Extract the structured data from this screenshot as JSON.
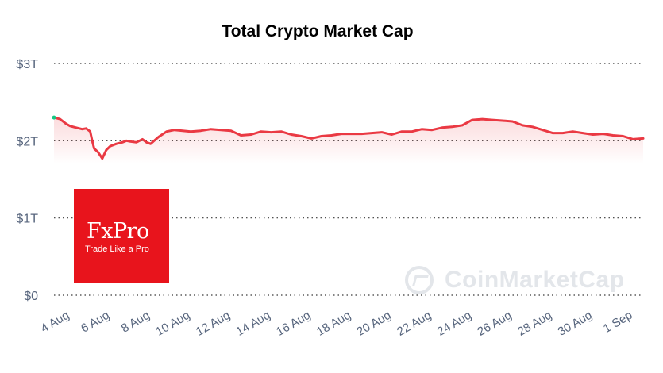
{
  "chart_data": {
    "type": "line",
    "title": "Total Crypto Market Cap",
    "ylabel": "",
    "xlabel": "",
    "y_ticks": [
      "$0",
      "$1T",
      "$2T",
      "$3T"
    ],
    "y_tick_values": [
      0,
      1,
      2,
      3
    ],
    "ylim": [
      0,
      3
    ],
    "x_ticks": [
      "4 Aug",
      "6 Aug",
      "8 Aug",
      "10 Aug",
      "12 Aug",
      "14 Aug",
      "16 Aug",
      "18 Aug",
      "20 Aug",
      "22 Aug",
      "24 Aug",
      "26 Aug",
      "28 Aug",
      "30 Aug",
      "1 Sep"
    ],
    "x_tick_days": [
      4,
      6,
      8,
      10,
      12,
      14,
      16,
      18,
      20,
      22,
      24,
      26,
      28,
      30,
      32
    ],
    "xlim": [
      3.2,
      32.5
    ],
    "grid": "horizontal dotted",
    "line_color": "#ea3943",
    "start_marker_color": "#16c784",
    "series": [
      {
        "unit": "trillion USD",
        "x": [
          3.2,
          3.5,
          3.8,
          4.0,
          4.3,
          4.6,
          4.8,
          5.0,
          5.1,
          5.2,
          5.4,
          5.6,
          5.8,
          6.0,
          6.3,
          6.6,
          6.8,
          7.0,
          7.3,
          7.6,
          7.8,
          8.0,
          8.4,
          8.8,
          9.2,
          9.6,
          10.0,
          10.5,
          11.0,
          11.5,
          12.0,
          12.5,
          13.0,
          13.5,
          14.0,
          14.5,
          15.0,
          15.5,
          16.0,
          16.5,
          17.0,
          17.5,
          18.0,
          18.5,
          19.0,
          19.5,
          20.0,
          20.5,
          21.0,
          21.5,
          22.0,
          22.5,
          23.0,
          23.5,
          24.0,
          24.5,
          25.0,
          25.5,
          26.0,
          26.5,
          27.0,
          27.5,
          28.0,
          28.5,
          29.0,
          29.5,
          30.0,
          30.5,
          31.0,
          31.5,
          32.0,
          32.5
        ],
        "values": [
          2.3,
          2.28,
          2.22,
          2.19,
          2.17,
          2.15,
          2.16,
          2.12,
          2.0,
          1.9,
          1.85,
          1.77,
          1.88,
          1.93,
          1.96,
          1.98,
          2.0,
          1.99,
          1.98,
          2.02,
          1.98,
          1.96,
          2.05,
          2.12,
          2.14,
          2.13,
          2.12,
          2.13,
          2.15,
          2.14,
          2.13,
          2.07,
          2.08,
          2.12,
          2.11,
          2.12,
          2.08,
          2.06,
          2.03,
          2.06,
          2.07,
          2.09,
          2.09,
          2.09,
          2.1,
          2.11,
          2.08,
          2.12,
          2.12,
          2.15,
          2.14,
          2.17,
          2.18,
          2.2,
          2.27,
          2.28,
          2.27,
          2.26,
          2.25,
          2.2,
          2.18,
          2.14,
          2.1,
          2.1,
          2.12,
          2.1,
          2.08,
          2.09,
          2.07,
          2.06,
          2.02,
          2.03
        ]
      }
    ]
  },
  "watermark": {
    "brand": "CoinMarketCap"
  },
  "logo": {
    "name": "FxPro",
    "tagline": "Trade Like a Pro"
  }
}
